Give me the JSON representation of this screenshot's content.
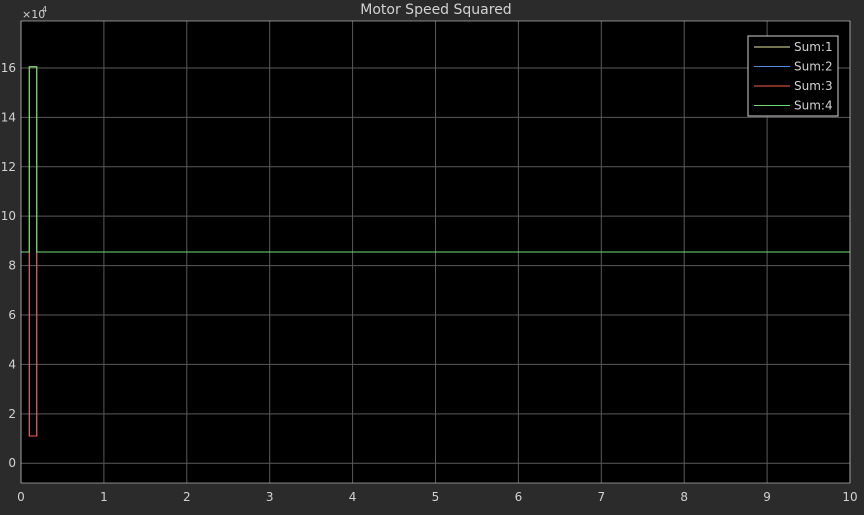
{
  "chart_data": {
    "type": "line",
    "title": "Motor Speed Squared",
    "xlabel": "",
    "ylabel": "",
    "y_exponent_label": "×10",
    "y_exponent_power": "4",
    "xlim": [
      0,
      10
    ],
    "ylim": [
      -0.8,
      17.9
    ],
    "x_ticks": [
      0,
      1,
      2,
      3,
      4,
      5,
      6,
      7,
      8,
      9,
      10
    ],
    "y_ticks": [
      0,
      2,
      4,
      6,
      8,
      10,
      12,
      14,
      16
    ],
    "grid": true,
    "legend_location": "top-right",
    "series": [
      {
        "name": "Sum:1",
        "color": "#e8e8a0",
        "points": [
          [
            0,
            8.55
          ],
          [
            0.1,
            8.55
          ],
          [
            0.1,
            16.05
          ],
          [
            0.19,
            16.05
          ],
          [
            0.19,
            8.55
          ],
          [
            10,
            8.55
          ]
        ]
      },
      {
        "name": "Sum:2",
        "color": "#4a90e2",
        "points": [
          [
            0,
            8.55
          ],
          [
            0.1,
            8.55
          ],
          [
            0.1,
            1.1
          ],
          [
            0.19,
            1.1
          ],
          [
            0.19,
            8.55
          ],
          [
            10,
            8.55
          ]
        ]
      },
      {
        "name": "Sum:3",
        "color": "#ff5a4a",
        "points": [
          [
            0,
            8.55
          ],
          [
            0.1,
            8.55
          ],
          [
            0.1,
            1.1
          ],
          [
            0.19,
            1.1
          ],
          [
            0.19,
            8.55
          ],
          [
            10,
            8.55
          ]
        ]
      },
      {
        "name": "Sum:4",
        "color": "#6fdc6f",
        "points": [
          [
            0,
            8.55
          ],
          [
            0.1,
            8.55
          ],
          [
            0.1,
            16.05
          ],
          [
            0.19,
            16.05
          ],
          [
            0.19,
            8.55
          ],
          [
            10,
            8.55
          ]
        ]
      }
    ]
  },
  "colors": {
    "figure_background": "#2b2b2b",
    "plot_background": "#000000",
    "grid": "#5a5a5a",
    "text": "#d2d2d2",
    "legend_border": "#d2d2d2"
  }
}
